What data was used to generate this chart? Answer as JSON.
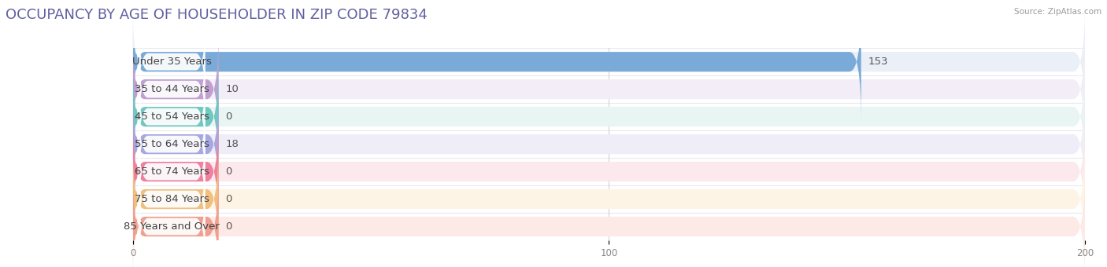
{
  "title": "OCCUPANCY BY AGE OF HOUSEHOLDER IN ZIP CODE 79834",
  "title_color": "#6060a0",
  "source_text": "Source: ZipAtlas.com",
  "categories": [
    "Under 35 Years",
    "35 to 44 Years",
    "45 to 54 Years",
    "55 to 64 Years",
    "65 to 74 Years",
    "75 to 84 Years",
    "85 Years and Over"
  ],
  "values": [
    153,
    10,
    0,
    18,
    0,
    0,
    0
  ],
  "min_bar_width": 18,
  "bar_colors": [
    "#7aaad8",
    "#c0a0d0",
    "#70c8c0",
    "#a8a8e0",
    "#f080a0",
    "#f0c080",
    "#f0a090"
  ],
  "bar_bg_colors": [
    "#eaeff8",
    "#f2edf7",
    "#e8f5f3",
    "#eeedf8",
    "#fce9ed",
    "#fdf4e5",
    "#fde9e5"
  ],
  "row_sep_color": "#e0e0e8",
  "xlim": [
    0,
    200
  ],
  "xticks": [
    0,
    100,
    200
  ],
  "background_color": "#ffffff",
  "value_fontsize": 9.5,
  "label_fontsize": 9.5,
  "title_fontsize": 13
}
